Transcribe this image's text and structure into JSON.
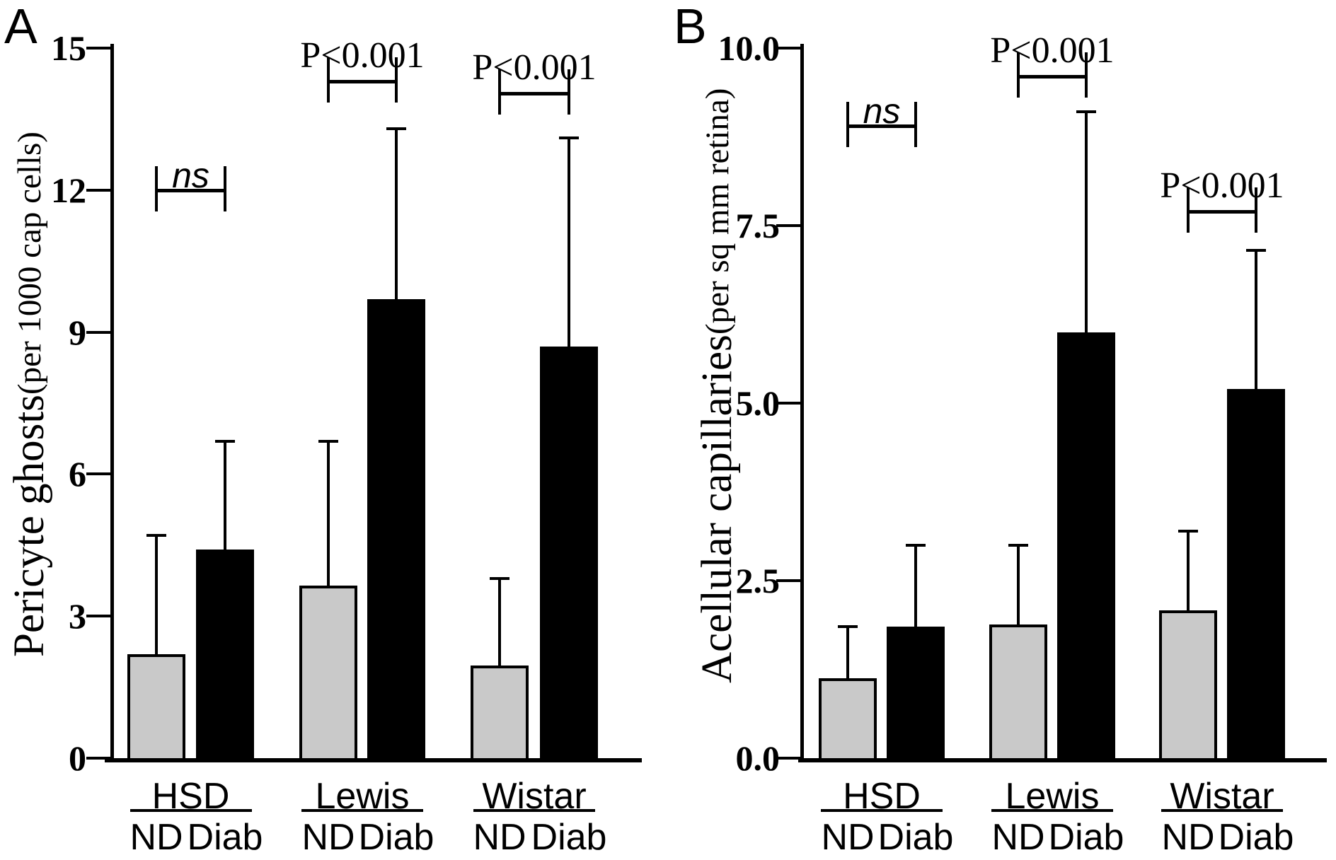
{
  "chart_data": [
    {
      "type": "bar",
      "panel": "A",
      "ylabel": "Pericyte ghosts (per 1000 cap cells)",
      "ylabel_main": "Pericyte ghosts ",
      "ylabel_sub": "(per 1000 cap cells)",
      "ylim": [
        0,
        15
      ],
      "yticks": [
        0,
        3,
        6,
        9,
        12,
        15
      ],
      "ytick_labels": [
        "0",
        "3",
        "6",
        "9",
        "12",
        "15"
      ],
      "grid": false,
      "legend_position": "none",
      "categories": [
        "HSD",
        "Lewis",
        "Wistar"
      ],
      "series": [
        {
          "name": "ND",
          "fill": "#c9c9c9",
          "values": [
            2.2,
            3.65,
            1.95
          ],
          "errors": [
            2.5,
            3.05,
            1.85
          ]
        },
        {
          "name": "Diab",
          "fill": "#000000",
          "values": [
            4.4,
            9.7,
            8.7
          ],
          "errors": [
            2.3,
            3.6,
            4.4
          ]
        }
      ],
      "significance": [
        {
          "group": "HSD",
          "label": "ns",
          "italic": true,
          "bar_y": 12.0
        },
        {
          "group": "Lewis",
          "label": "P<0.001",
          "italic": false,
          "bar_y": 14.3
        },
        {
          "group": "Wistar",
          "label": "P<0.001",
          "italic": false,
          "bar_y": 14.05
        }
      ]
    },
    {
      "type": "bar",
      "panel": "B",
      "ylabel": "Acellular capillaries (per sq mm retina)",
      "ylabel_main": "Acellular capillaries ",
      "ylabel_sub": "(per sq mm retina)",
      "ylim": [
        0,
        10
      ],
      "yticks": [
        0,
        2.5,
        5,
        7.5,
        10
      ],
      "ytick_labels": [
        "0.0",
        "2.5",
        "5.0",
        "7.5",
        "10.0"
      ],
      "grid": false,
      "legend_position": "none",
      "categories": [
        "HSD",
        "Lewis",
        "Wistar"
      ],
      "series": [
        {
          "name": "ND",
          "fill": "#c9c9c9",
          "values": [
            1.13,
            1.88,
            2.08
          ],
          "errors": [
            0.72,
            1.12,
            1.12
          ]
        },
        {
          "name": "Diab",
          "fill": "#000000",
          "values": [
            1.85,
            6.0,
            5.2
          ],
          "errors": [
            1.15,
            3.1,
            1.95
          ]
        }
      ],
      "significance": [
        {
          "group": "HSD",
          "label": "ns",
          "italic": true,
          "bar_y": 8.9
        },
        {
          "group": "Lewis",
          "label": "P<0.001",
          "italic": false,
          "bar_y": 9.6
        },
        {
          "group": "Wistar",
          "label": "P<0.001",
          "italic": false,
          "bar_y": 7.7
        }
      ]
    }
  ],
  "colors": {
    "nd_fill": "#c9c9c9",
    "diab_fill": "#000000",
    "line": "#000000",
    "background": "#ffffff"
  }
}
